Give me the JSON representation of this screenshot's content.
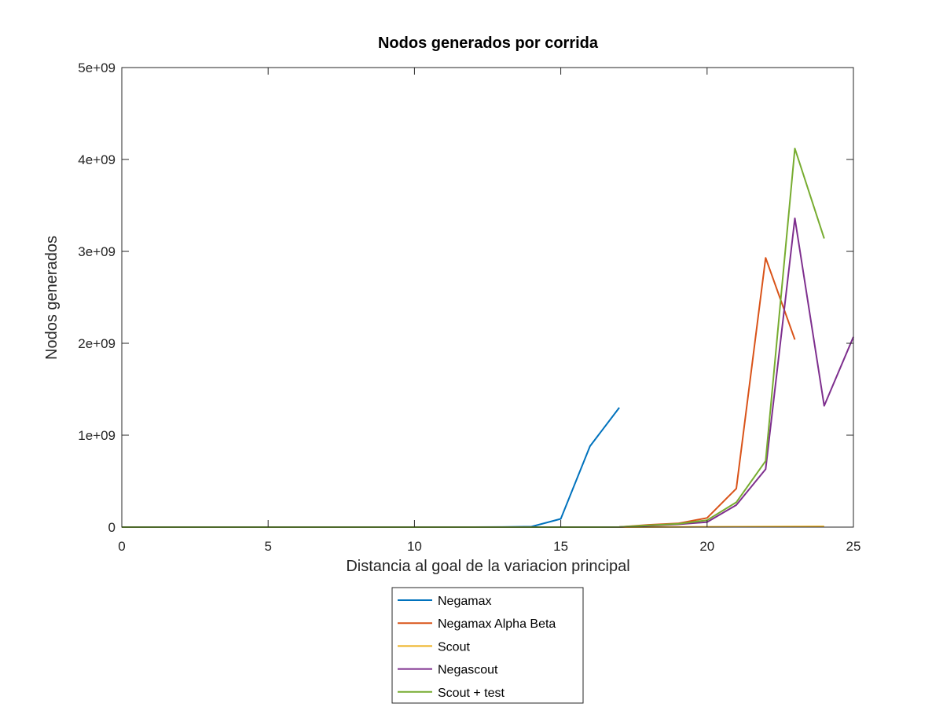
{
  "chart_data": {
    "type": "line",
    "title": "Nodos generados por corrida",
    "xlabel": "Distancia al goal de la variacion principal",
    "ylabel": "Nodos generados",
    "xlim": [
      0,
      25
    ],
    "ylim": [
      0,
      5000000000
    ],
    "xticks": [
      0,
      5,
      10,
      15,
      20,
      25
    ],
    "xtick_labels": [
      "0",
      "5",
      "10",
      "15",
      "20",
      "25"
    ],
    "yticks": [
      0,
      1000000000,
      2000000000,
      3000000000,
      4000000000,
      5000000000
    ],
    "ytick_labels": [
      "0",
      "1e+09",
      "2e+09",
      "3e+09",
      "4e+09",
      "5e+09"
    ],
    "grid": false,
    "legend_position": "bottom-center-outside",
    "series": [
      {
        "name": "Negamax",
        "color": "#0072bd",
        "x": [
          0,
          1,
          2,
          3,
          4,
          5,
          6,
          7,
          8,
          9,
          10,
          11,
          12,
          13,
          14,
          15,
          16,
          17
        ],
        "y": [
          0,
          0,
          0,
          0,
          0,
          0,
          0,
          0,
          0,
          0,
          0,
          0,
          0,
          1000000,
          5000000,
          90000000,
          880000000,
          1300000000
        ]
      },
      {
        "name": "Negamax Alpha Beta",
        "color": "#d95319",
        "x": [
          0,
          1,
          2,
          3,
          4,
          5,
          6,
          7,
          8,
          9,
          10,
          11,
          12,
          13,
          14,
          15,
          16,
          17,
          18,
          19,
          20,
          21,
          22,
          23
        ],
        "y": [
          0,
          0,
          0,
          0,
          0,
          0,
          0,
          0,
          0,
          0,
          0,
          0,
          0,
          0,
          0,
          0,
          0,
          1000000,
          25000000,
          40000000,
          100000000,
          420000000,
          2930000000,
          2040000000
        ]
      },
      {
        "name": "Scout",
        "color": "#edb120",
        "x": [
          0,
          1,
          2,
          3,
          4,
          5,
          6,
          7,
          8,
          9,
          10,
          11,
          12,
          13,
          14,
          15,
          16,
          17,
          18,
          19,
          20,
          21,
          22,
          23,
          24
        ],
        "y": [
          0,
          0,
          0,
          0,
          0,
          0,
          0,
          0,
          0,
          0,
          0,
          0,
          0,
          0,
          0,
          0,
          0,
          0,
          1000000,
          2000000,
          3000000,
          4000000,
          5000000,
          6000000,
          8000000
        ]
      },
      {
        "name": "Negascout",
        "color": "#7e2f8e",
        "x": [
          0,
          1,
          2,
          3,
          4,
          5,
          6,
          7,
          8,
          9,
          10,
          11,
          12,
          13,
          14,
          15,
          16,
          17,
          18,
          19,
          20,
          21,
          22,
          23,
          24,
          25
        ],
        "y": [
          0,
          0,
          0,
          0,
          0,
          0,
          0,
          0,
          0,
          0,
          0,
          0,
          0,
          0,
          0,
          0,
          0,
          1000000,
          15000000,
          30000000,
          55000000,
          240000000,
          630000000,
          3360000000,
          1320000000,
          2070000000
        ]
      },
      {
        "name": "Scout + test",
        "color": "#77ac30",
        "x": [
          0,
          1,
          2,
          3,
          4,
          5,
          6,
          7,
          8,
          9,
          10,
          11,
          12,
          13,
          14,
          15,
          16,
          17,
          18,
          19,
          20,
          21,
          22,
          23,
          24
        ],
        "y": [
          0,
          0,
          0,
          0,
          0,
          0,
          0,
          0,
          0,
          0,
          0,
          0,
          0,
          0,
          0,
          0,
          0,
          1000000,
          20000000,
          35000000,
          75000000,
          270000000,
          720000000,
          4120000000,
          3140000000
        ]
      }
    ]
  }
}
